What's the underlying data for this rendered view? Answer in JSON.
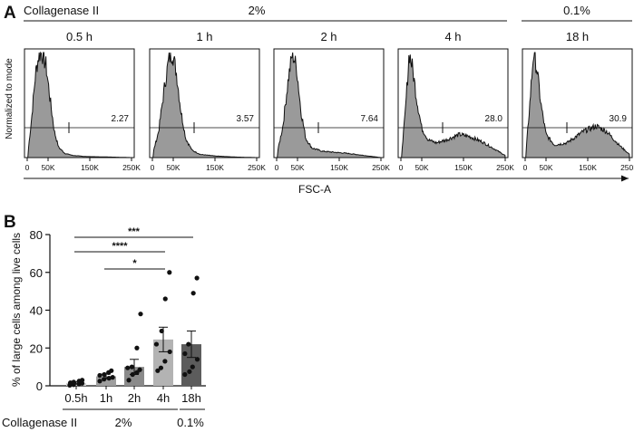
{
  "panel_labels": {
    "a": "A",
    "b": "B"
  },
  "header": {
    "treatment_label": "Collagenase II",
    "group_2pct": "2%",
    "group_01pct": "0.1%"
  },
  "x_axis_label": "FSC-A",
  "y_axis_label": "Normalized to mode",
  "colors": {
    "fill": "#9a9a9a",
    "line": "#111111"
  },
  "chart_data": [
    {
      "type": "area",
      "name": "flow-cytometry-histograms",
      "title": "Collagenase II",
      "xlabel": "FSC-A",
      "ylabel": "Normalized to mode",
      "x_ticks": [
        "0",
        "50K",
        "150K",
        "250K"
      ],
      "xlim": [
        0,
        250000
      ],
      "ylim": [
        0,
        100
      ],
      "gate_start": 100000,
      "panels": [
        {
          "title": "0.5 h",
          "gate_value": "2.27",
          "group": "2%",
          "profile": [
            {
              "x": 2,
              "y": 5
            },
            {
              "x": 10,
              "y": 35
            },
            {
              "x": 20,
              "y": 80
            },
            {
              "x": 28,
              "y": 98
            },
            {
              "x": 35,
              "y": 100
            },
            {
              "x": 45,
              "y": 88
            },
            {
              "x": 55,
              "y": 55
            },
            {
              "x": 65,
              "y": 25
            },
            {
              "x": 75,
              "y": 10
            },
            {
              "x": 90,
              "y": 4
            },
            {
              "x": 110,
              "y": 2
            },
            {
              "x": 140,
              "y": 1
            },
            {
              "x": 200,
              "y": 0.5
            },
            {
              "x": 250,
              "y": 0
            }
          ]
        },
        {
          "title": "1 h",
          "gate_value": "3.57",
          "group": "2%",
          "profile": [
            {
              "x": 2,
              "y": 5
            },
            {
              "x": 15,
              "y": 25
            },
            {
              "x": 30,
              "y": 70
            },
            {
              "x": 40,
              "y": 95
            },
            {
              "x": 48,
              "y": 100
            },
            {
              "x": 58,
              "y": 80
            },
            {
              "x": 68,
              "y": 45
            },
            {
              "x": 80,
              "y": 18
            },
            {
              "x": 95,
              "y": 7
            },
            {
              "x": 115,
              "y": 3
            },
            {
              "x": 150,
              "y": 1.5
            },
            {
              "x": 200,
              "y": 0.5
            },
            {
              "x": 250,
              "y": 0
            }
          ]
        },
        {
          "title": "2 h",
          "gate_value": "7.64",
          "group": "2%",
          "profile": [
            {
              "x": 2,
              "y": 5
            },
            {
              "x": 15,
              "y": 30
            },
            {
              "x": 28,
              "y": 75
            },
            {
              "x": 38,
              "y": 100
            },
            {
              "x": 48,
              "y": 85
            },
            {
              "x": 58,
              "y": 45
            },
            {
              "x": 70,
              "y": 18
            },
            {
              "x": 85,
              "y": 9
            },
            {
              "x": 110,
              "y": 6
            },
            {
              "x": 140,
              "y": 5
            },
            {
              "x": 170,
              "y": 4
            },
            {
              "x": 210,
              "y": 2
            },
            {
              "x": 250,
              "y": 0
            }
          ]
        },
        {
          "title": "4 h",
          "gate_value": "28.0",
          "group": "2%",
          "profile": [
            {
              "x": 2,
              "y": 5
            },
            {
              "x": 10,
              "y": 40
            },
            {
              "x": 20,
              "y": 100
            },
            {
              "x": 28,
              "y": 85
            },
            {
              "x": 38,
              "y": 55
            },
            {
              "x": 50,
              "y": 28
            },
            {
              "x": 65,
              "y": 17
            },
            {
              "x": 85,
              "y": 14
            },
            {
              "x": 110,
              "y": 17
            },
            {
              "x": 140,
              "y": 22
            },
            {
              "x": 165,
              "y": 20
            },
            {
              "x": 195,
              "y": 15
            },
            {
              "x": 225,
              "y": 8
            },
            {
              "x": 250,
              "y": 2
            }
          ]
        },
        {
          "title": "18 h",
          "gate_value": "30.9",
          "group": "0.1%",
          "profile": [
            {
              "x": 2,
              "y": 5
            },
            {
              "x": 10,
              "y": 45
            },
            {
              "x": 20,
              "y": 100
            },
            {
              "x": 28,
              "y": 85
            },
            {
              "x": 38,
              "y": 50
            },
            {
              "x": 50,
              "y": 22
            },
            {
              "x": 70,
              "y": 12
            },
            {
              "x": 100,
              "y": 14
            },
            {
              "x": 140,
              "y": 25
            },
            {
              "x": 170,
              "y": 30
            },
            {
              "x": 195,
              "y": 25
            },
            {
              "x": 225,
              "y": 12
            },
            {
              "x": 250,
              "y": 3
            }
          ]
        }
      ]
    },
    {
      "type": "bar",
      "name": "large-cells-percentage",
      "ylabel": "% of large cells among live cells",
      "xlabel": "Collagenase II",
      "categories": [
        "0.5h",
        "1h",
        "2h",
        "4h",
        "18h"
      ],
      "groups": [
        {
          "label": "2%",
          "members": [
            "0.5h",
            "1h",
            "2h",
            "4h"
          ]
        },
        {
          "label": "0.1%",
          "members": [
            "18h"
          ]
        }
      ],
      "ylim": [
        0,
        80
      ],
      "y_ticks": [
        "0",
        "20",
        "40",
        "60",
        "80"
      ],
      "values": [
        1.5,
        5,
        10,
        24.5,
        22
      ],
      "errors": [
        0.6,
        1.2,
        4,
        6.5,
        7
      ],
      "bar_colors": [
        "#d2d2d2",
        "#9e9e9e",
        "#8a8a8a",
        "#b3b3b3",
        "#5c5c5c"
      ],
      "points": [
        [
          0.3,
          0.6,
          0.9,
          1.3,
          1.6,
          2.0,
          2.5,
          3.0
        ],
        [
          2.5,
          3.5,
          4.0,
          4.5,
          5.5,
          6.0,
          7.0,
          8.0
        ],
        [
          3.0,
          6.0,
          7.0,
          8.5,
          9.5,
          10.0,
          20.0,
          38.0
        ],
        [
          8.0,
          9.5,
          13.0,
          18.0,
          22.0,
          29.0,
          46.0,
          60.0
        ],
        [
          6.0,
          7.5,
          10.0,
          14.0,
          17.0,
          22.0,
          49.0,
          57.0
        ]
      ],
      "significance": [
        {
          "from": "0.5h",
          "to": "18h",
          "label": "***"
        },
        {
          "from": "0.5h",
          "to": "4h",
          "label": "****"
        },
        {
          "from": "1h",
          "to": "4h",
          "label": "*"
        }
      ]
    }
  ]
}
